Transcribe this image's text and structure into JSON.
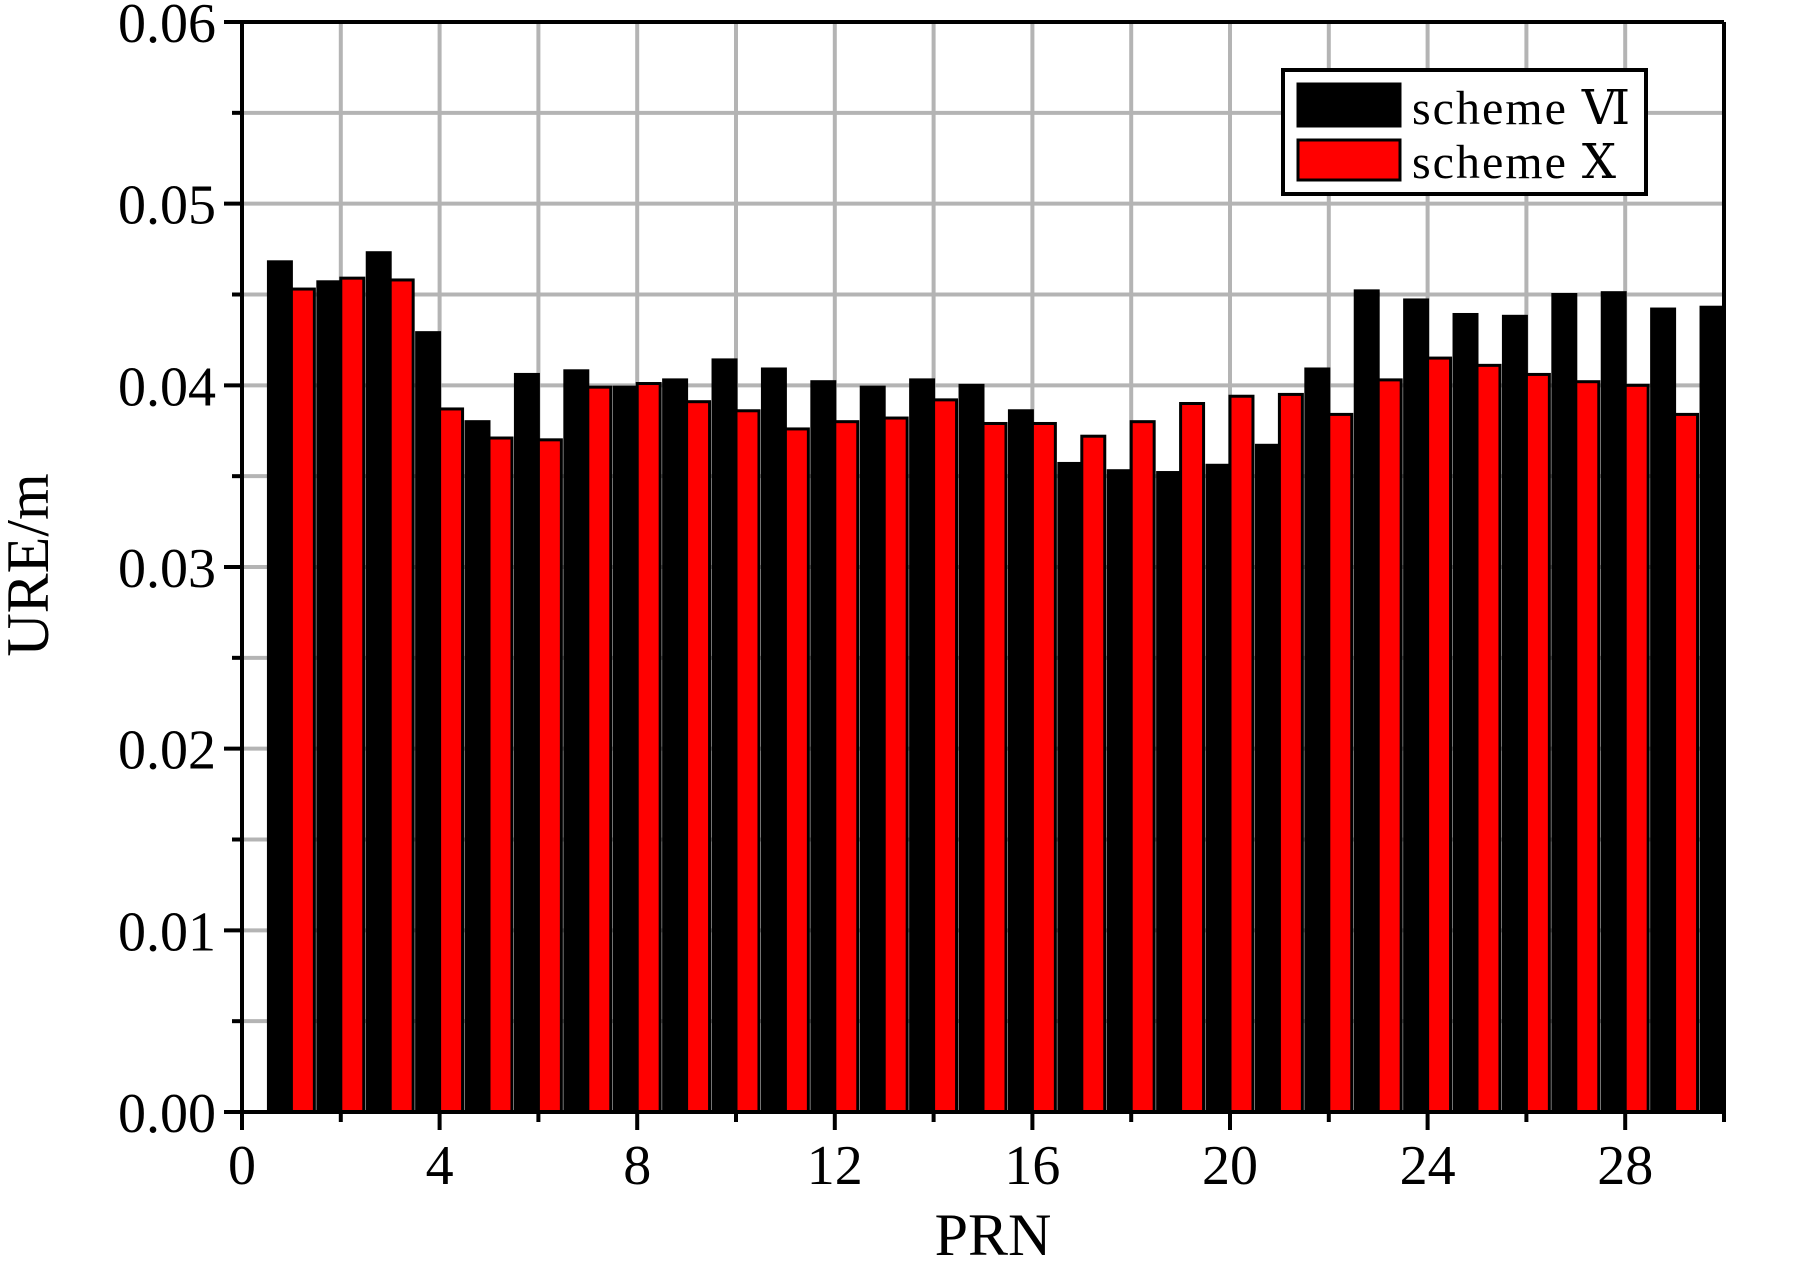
{
  "chart_data": {
    "type": "bar",
    "title": "",
    "xlabel": "PRN",
    "ylabel": "URE/m",
    "xlim": [
      0,
      30
    ],
    "ylim": [
      0,
      0.06
    ],
    "x_ticks": [
      0,
      4,
      8,
      12,
      16,
      20,
      24,
      28
    ],
    "x_tick_labels": [
      "0",
      "4",
      "8",
      "12",
      "16",
      "20",
      "24",
      "28"
    ],
    "y_ticks": [
      0,
      0.01,
      0.02,
      0.03,
      0.04,
      0.05,
      0.06
    ],
    "y_tick_labels": [
      "0.00",
      "0.01",
      "0.02",
      "0.03",
      "0.04",
      "0.05",
      "0.06"
    ],
    "grid": true,
    "legend_position": "top-right",
    "categories": [
      1,
      2,
      3,
      4,
      5,
      6,
      7,
      8,
      9,
      10,
      11,
      12,
      13,
      14,
      15,
      16,
      17,
      18,
      19,
      20,
      21,
      22,
      23,
      24,
      25,
      26,
      27,
      28,
      29,
      30
    ],
    "series": [
      {
        "name": "scheme Ⅵ",
        "color": "#000000",
        "values": [
          0.0468,
          0.0457,
          0.0473,
          0.0429,
          0.038,
          0.0406,
          0.0408,
          0.0399,
          0.0403,
          0.0414,
          0.0409,
          0.0402,
          0.0399,
          0.0403,
          0.04,
          0.0386,
          0.0357,
          0.0353,
          0.0352,
          0.0356,
          0.0367,
          0.0409,
          0.0452,
          0.0447,
          0.0439,
          0.0438,
          0.045,
          0.0451,
          0.0442,
          0.0443
        ]
      },
      {
        "name": "scheme Ⅹ",
        "color": "#ff0000",
        "values": [
          0.0453,
          0.0459,
          0.0458,
          0.0387,
          0.0371,
          0.037,
          0.0399,
          0.0401,
          0.0391,
          0.0386,
          0.0376,
          0.038,
          0.0382,
          0.0392,
          0.0379,
          0.0379,
          0.0372,
          0.038,
          0.039,
          0.0394,
          0.0395,
          0.0384,
          0.0403,
          0.0415,
          0.0411,
          0.0406,
          0.0402,
          0.04,
          0.0384,
          null
        ]
      }
    ]
  }
}
